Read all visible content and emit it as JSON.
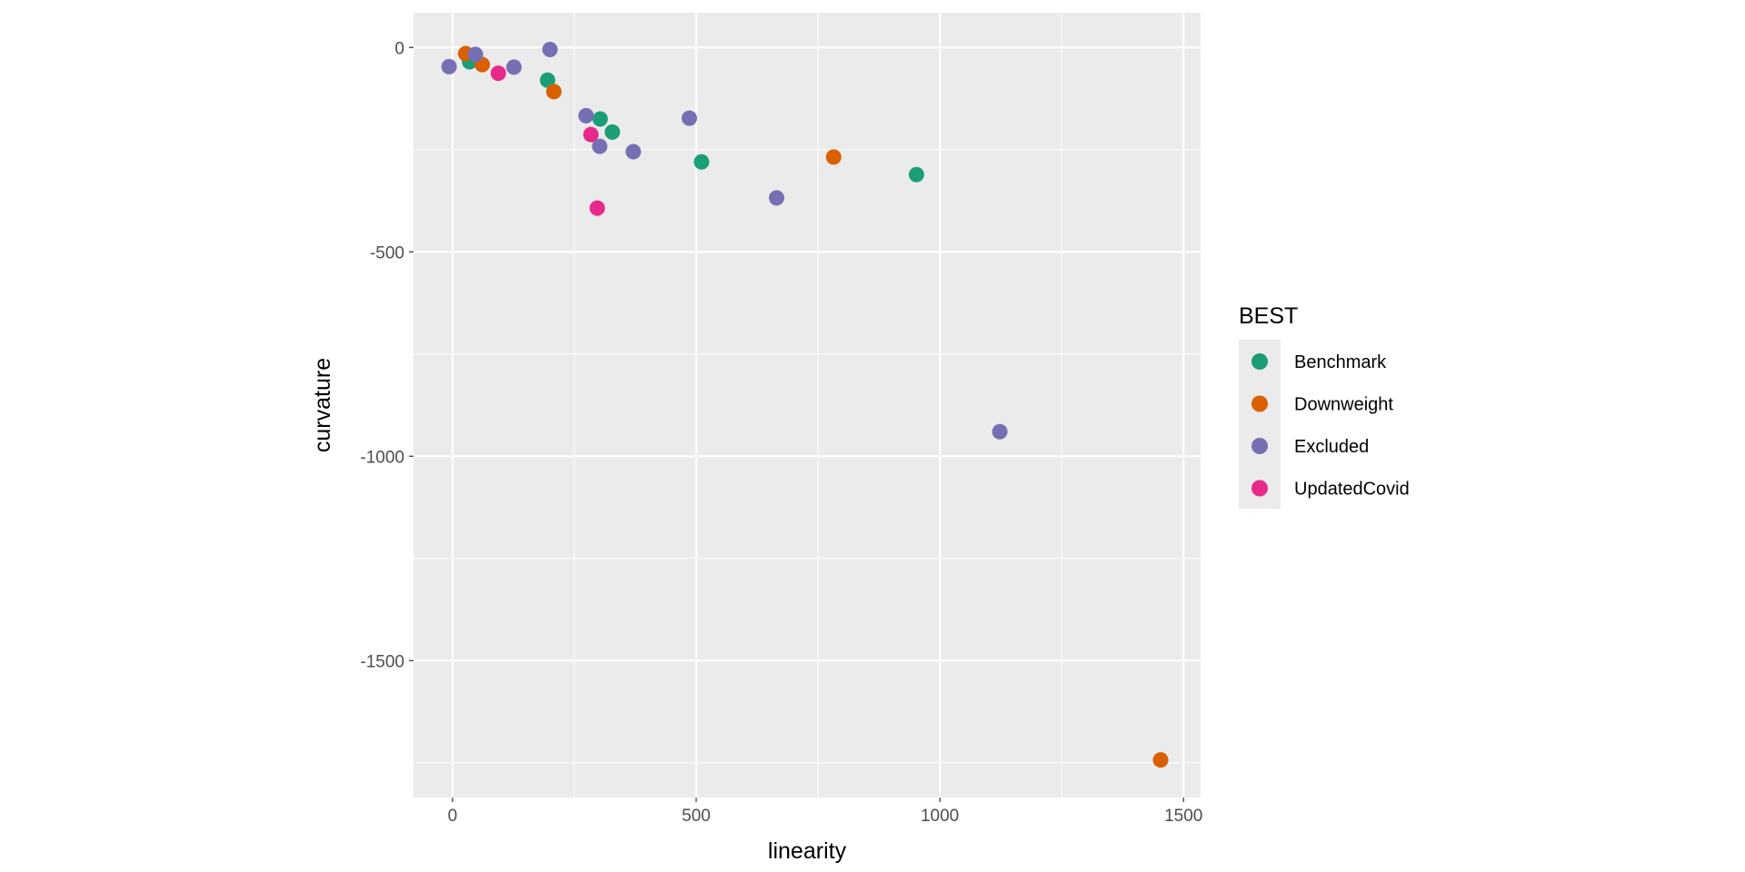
{
  "chart_data": {
    "type": "scatter",
    "title": "",
    "xlabel": "linearity",
    "ylabel": "curvature",
    "xlim": [
      -80,
      1535
    ],
    "ylim": [
      -1835,
      85
    ],
    "x_ticks": [
      0,
      500,
      1000,
      1500
    ],
    "x_tick_labels": [
      "0",
      "500",
      "1000",
      "1500"
    ],
    "y_ticks": [
      0,
      -500,
      -1000,
      -1500
    ],
    "y_tick_labels": [
      "0",
      "-500",
      "-1000",
      "-1500"
    ],
    "grid": true,
    "legend": {
      "title": "BEST",
      "position": "right",
      "entries": [
        "Benchmark",
        "Downweight",
        "Excluded",
        "UpdatedCovid"
      ]
    },
    "series": [
      {
        "name": "Benchmark",
        "color": "#1B9E77",
        "points": [
          {
            "x": 35,
            "y": -35
          },
          {
            "x": 195,
            "y": -80
          },
          {
            "x": 303,
            "y": -175
          },
          {
            "x": 328,
            "y": -207
          },
          {
            "x": 511,
            "y": -280
          },
          {
            "x": 952,
            "y": -311
          }
        ]
      },
      {
        "name": "Downweight",
        "color": "#D95F02",
        "points": [
          {
            "x": 27,
            "y": -15
          },
          {
            "x": 61,
            "y": -42
          },
          {
            "x": 208,
            "y": -108
          },
          {
            "x": 782,
            "y": -268
          },
          {
            "x": 1453,
            "y": -1743
          }
        ]
      },
      {
        "name": "Excluded",
        "color": "#7570B3",
        "points": [
          {
            "x": -7,
            "y": -47
          },
          {
            "x": 47,
            "y": -17
          },
          {
            "x": 126,
            "y": -48
          },
          {
            "x": 200,
            "y": -5
          },
          {
            "x": 274,
            "y": -167
          },
          {
            "x": 302,
            "y": -242
          },
          {
            "x": 371,
            "y": -255
          },
          {
            "x": 486,
            "y": -173
          },
          {
            "x": 665,
            "y": -368
          },
          {
            "x": 1123,
            "y": -940
          }
        ]
      },
      {
        "name": "UpdatedCovid",
        "color": "#E7298A",
        "points": [
          {
            "x": 94,
            "y": -63
          },
          {
            "x": 284,
            "y": -213
          },
          {
            "x": 297,
            "y": -393
          }
        ]
      }
    ],
    "panel_color": "#EBEBEB",
    "grid_color": "#FFFFFF"
  }
}
